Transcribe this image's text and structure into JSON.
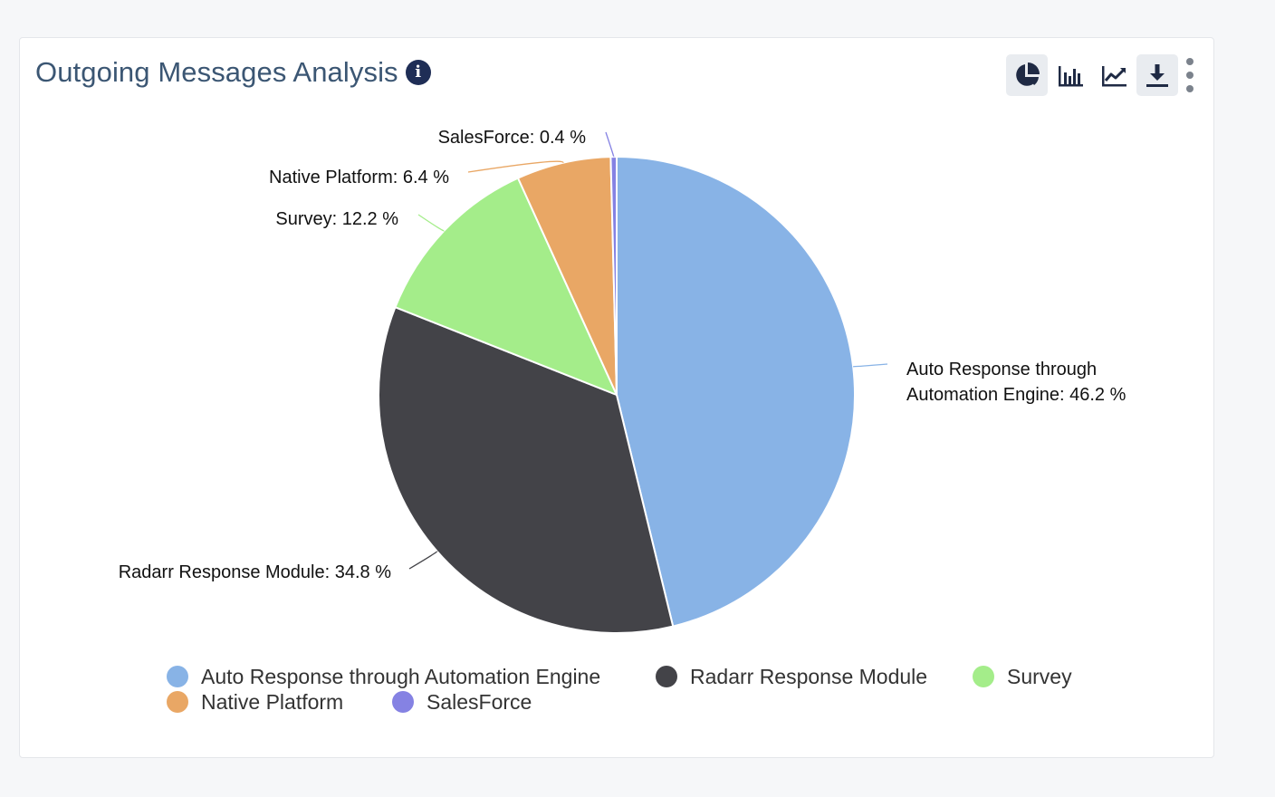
{
  "header": {
    "title": "Outgoing Messages Analysis"
  },
  "toolbar": {
    "buttons": [
      {
        "name": "pie-chart-button",
        "icon": "pie-chart-icon",
        "active": true
      },
      {
        "name": "bar-chart-button",
        "icon": "bar-chart-icon",
        "active": false
      },
      {
        "name": "line-chart-button",
        "icon": "line-chart-icon",
        "active": false
      },
      {
        "name": "download-button",
        "icon": "download-icon",
        "active": true
      },
      {
        "name": "more-options-button",
        "icon": "kebab-icon",
        "active": false
      }
    ]
  },
  "chart_data": {
    "type": "pie",
    "title": "Outgoing Messages Analysis",
    "categories": [
      "Auto Response through Automation Engine",
      "Radarr Response Module",
      "Survey",
      "Native Platform",
      "SalesForce"
    ],
    "values": [
      46.2,
      34.8,
      12.2,
      6.4,
      0.4
    ],
    "unit": "%",
    "colors": [
      "#88b3e6",
      "#434348",
      "#a4ed8a",
      "#e9a765",
      "#8582e3"
    ],
    "labels": [
      [
        "Auto Response through",
        "Automation Engine: 46.2 %"
      ],
      [
        "Radarr Response Module: 34.8 %"
      ],
      [
        "Survey: 12.2 %"
      ],
      [
        "Native Platform: 6.4 %"
      ],
      [
        "SalesForce: 0.4 %"
      ]
    ],
    "legend_position": "bottom",
    "legend": [
      [
        "Auto Response through Automation Engine",
        "Radarr Response Module",
        "Survey"
      ],
      [
        "Native Platform",
        "SalesForce"
      ]
    ]
  }
}
